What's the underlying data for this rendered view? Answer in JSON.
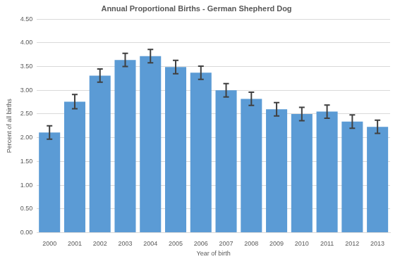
{
  "chart_data": {
    "type": "bar",
    "title": "Annual Proportional Births - German Shepherd Dog",
    "x_label": "Year of birth",
    "y_label": "Percent of all births",
    "categories": [
      "2000",
      "2001",
      "2002",
      "2003",
      "2004",
      "2005",
      "2006",
      "2007",
      "2008",
      "2009",
      "2010",
      "2011",
      "2012",
      "2013"
    ],
    "values": [
      2.11,
      2.76,
      3.31,
      3.64,
      3.72,
      3.49,
      3.37,
      3.0,
      2.82,
      2.6,
      2.5,
      2.55,
      2.34,
      2.23
    ],
    "errors": [
      0.14,
      0.15,
      0.14,
      0.14,
      0.14,
      0.14,
      0.14,
      0.14,
      0.14,
      0.14,
      0.14,
      0.14,
      0.14,
      0.14
    ],
    "color": "#5b9bd5",
    "ylim": [
      0,
      4.5
    ],
    "yticks": [
      {
        "value": 0,
        "label": "0.00"
      },
      {
        "value": 0.5,
        "label": "0.50"
      },
      {
        "value": 1,
        "label": "1.00"
      },
      {
        "value": 1.5,
        "label": "1.50"
      },
      {
        "value": 2,
        "label": "2.00"
      },
      {
        "value": 2.5,
        "label": "2.50"
      },
      {
        "value": 3,
        "label": "3.00"
      },
      {
        "value": 3.5,
        "label": "3.50"
      },
      {
        "value": 4,
        "label": "4.00"
      },
      {
        "value": 4.5,
        "label": "4.50"
      }
    ],
    "grid": true
  }
}
